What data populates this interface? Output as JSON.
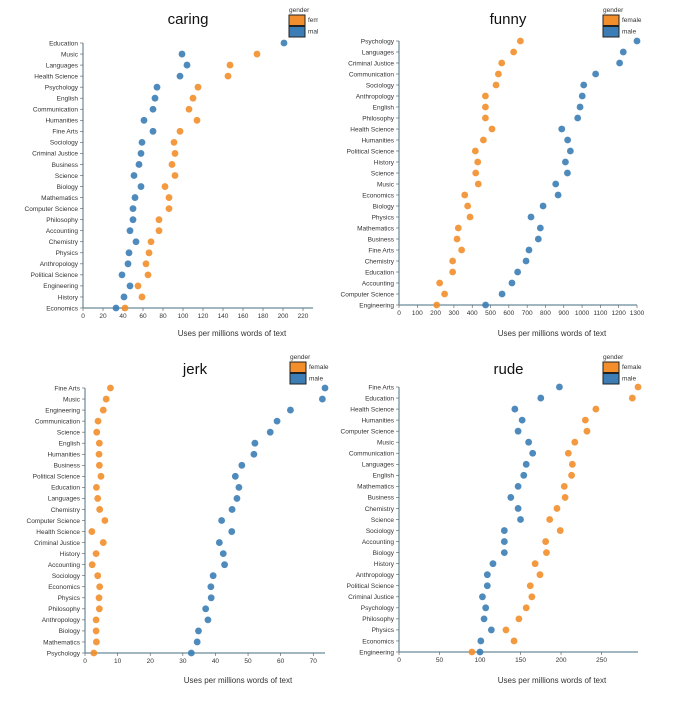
{
  "legend": {
    "title": "gender",
    "female": "female",
    "male": "male"
  },
  "colors": {
    "female": "#f28e2b",
    "male": "#3b7db4"
  },
  "chart_data": [
    {
      "type": "scatter",
      "title": "caring",
      "xlabel": "Uses per millions words of text",
      "ylabel": "",
      "xlim": [
        0,
        230
      ],
      "xticks": [
        0,
        20,
        40,
        60,
        80,
        100,
        120,
        140,
        160,
        180,
        200,
        220
      ],
      "grid": false,
      "legend": "top-right",
      "categories": [
        "Education",
        "Music",
        "Languages",
        "Health Science",
        "Psychology",
        "English",
        "Communication",
        "Humanities",
        "Fine Arts",
        "Sociology",
        "Criminal Justice",
        "Business",
        "Science",
        "Biology",
        "Mathematics",
        "Computer Science",
        "Philosophy",
        "Accounting",
        "Chemistry",
        "Physics",
        "Anthropology",
        "Political Science",
        "Engineering",
        "History",
        "Economics"
      ],
      "series": [
        {
          "name": "female",
          "values": [
            null,
            174,
            147,
            145,
            115,
            110,
            106,
            114,
            97,
            91,
            92,
            89,
            92,
            82,
            86,
            86,
            76,
            76,
            68,
            66,
            63,
            65,
            55,
            59,
            42
          ]
        },
        {
          "name": "male",
          "values": [
            201,
            99,
            104,
            97,
            74,
            72,
            70,
            61,
            70,
            59,
            58,
            56,
            51,
            58,
            52,
            50,
            50,
            47,
            53,
            46,
            45,
            39,
            47,
            41,
            33
          ]
        }
      ]
    },
    {
      "type": "scatter",
      "title": "funny",
      "xlabel": "Uses per millions words of text",
      "ylabel": "",
      "xlim": [
        0,
        1300
      ],
      "xticks": [
        0,
        100,
        200,
        300,
        400,
        500,
        600,
        700,
        800,
        900,
        1000,
        1100,
        1200,
        1300
      ],
      "grid": false,
      "legend": "top-right",
      "categories": [
        "Psychology",
        "Languages",
        "Criminal Justice",
        "Communication",
        "Sociology",
        "Anthropology",
        "English",
        "Philosophy",
        "Health Science",
        "Humanities",
        "Political Science",
        "History",
        "Science",
        "Music",
        "Economics",
        "Biology",
        "Physics",
        "Mathematics",
        "Business",
        "Fine Arts",
        "Chemistry",
        "Education",
        "Accounting",
        "Computer Science",
        "Engineering"
      ],
      "series": [
        {
          "name": "female",
          "values": [
            663,
            626,
            561,
            543,
            530,
            472,
            472,
            472,
            508,
            461,
            417,
            430,
            419,
            433,
            359,
            375,
            388,
            324,
            317,
            342,
            293,
            293,
            222,
            249,
            206
          ]
        },
        {
          "name": "male",
          "values": [
            1300,
            1225,
            1205,
            1074,
            1009,
            1001,
            989,
            976,
            889,
            921,
            936,
            909,
            920,
            856,
            869,
            787,
            721,
            772,
            761,
            710,
            694,
            648,
            617,
            563,
            473
          ]
        }
      ]
    },
    {
      "type": "scatter",
      "title": "jerk",
      "xlabel": "Uses per millions words of text",
      "ylabel": "",
      "xlim": [
        0,
        73.6
      ],
      "xticks": [
        0,
        10,
        20,
        30,
        40,
        50,
        60,
        70
      ],
      "grid": false,
      "legend": "top-right",
      "categories": [
        "Fine Arts",
        "Music",
        "Engineering",
        "Communication",
        "Science",
        "English",
        "Humanities",
        "Business",
        "Political Science",
        "Education",
        "Languages",
        "Chemistry",
        "Computer Science",
        "Health Science",
        "Criminal Justice",
        "History",
        "Accounting",
        "Sociology",
        "Economics",
        "Physics",
        "Philosophy",
        "Anthropology",
        "Biology",
        "Mathematics",
        "Psychology"
      ],
      "series": [
        {
          "name": "female",
          "values": [
            7.8,
            6.5,
            5.6,
            4.0,
            3.6,
            4.4,
            4.3,
            4.4,
            4.9,
            3.5,
            3.9,
            4.5,
            6.1,
            2.1,
            5.6,
            3.4,
            2.2,
            3.9,
            4.5,
            4.3,
            4.4,
            3.4,
            3.4,
            3.5,
            2.7
          ]
        },
        {
          "name": "male",
          "values": [
            73.6,
            72.8,
            63.0,
            58.9,
            56.8,
            52.1,
            51.8,
            48.1,
            46.1,
            47.2,
            46.6,
            45.1,
            41.9,
            45.0,
            41.2,
            42.4,
            42.8,
            39.3,
            38.6,
            38.7,
            37.0,
            37.7,
            34.8,
            34.4,
            32.6
          ]
        }
      ]
    },
    {
      "type": "scatter",
      "title": "rude",
      "xlabel": "Uses per millions words of text",
      "ylabel": "",
      "xlim": [
        0,
        295
      ],
      "xticks": [
        0,
        50,
        100,
        150,
        200,
        250
      ],
      "grid": false,
      "legend": "top-right",
      "categories": [
        "Fine Arts",
        "Education",
        "Health Science",
        "Humanities",
        "Computer Science",
        "Music",
        "Communication",
        "Languages",
        "English",
        "Mathematics",
        "Business",
        "Chemistry",
        "Science",
        "Sociology",
        "Accounting",
        "Biology",
        "History",
        "Anthropology",
        "Political Science",
        "Criminal Justice",
        "Psychology",
        "Philosophy",
        "Physics",
        "Economics",
        "Engineering"
      ],
      "series": [
        {
          "name": "female",
          "values": [
            295,
            288,
            243,
            230,
            232,
            217,
            209,
            214,
            213,
            204,
            205,
            195,
            186,
            199,
            181,
            182,
            168,
            174,
            162,
            164,
            157,
            148,
            132,
            142,
            90
          ]
        },
        {
          "name": "male",
          "values": [
            198,
            175,
            143,
            152,
            147,
            160,
            165,
            157,
            154,
            147,
            138,
            147,
            150,
            130,
            130,
            130,
            116,
            109,
            109,
            103,
            107,
            105,
            114,
            101,
            100
          ]
        }
      ]
    }
  ]
}
